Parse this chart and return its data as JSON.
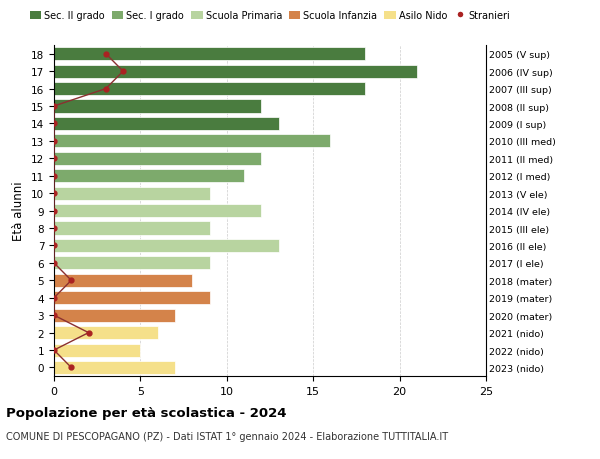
{
  "ages": [
    18,
    17,
    16,
    15,
    14,
    13,
    12,
    11,
    10,
    9,
    8,
    7,
    6,
    5,
    4,
    3,
    2,
    1,
    0
  ],
  "bar_values": [
    18,
    21,
    18,
    12,
    13,
    16,
    12,
    11,
    9,
    12,
    9,
    13,
    9,
    8,
    9,
    7,
    6,
    5,
    7
  ],
  "bar_colors": [
    "#4a7c3f",
    "#4a7c3f",
    "#4a7c3f",
    "#4a7c3f",
    "#4a7c3f",
    "#7daa6c",
    "#7daa6c",
    "#7daa6c",
    "#b8d4a0",
    "#b8d4a0",
    "#b8d4a0",
    "#b8d4a0",
    "#b8d4a0",
    "#d4834a",
    "#d4834a",
    "#d4834a",
    "#f5e08a",
    "#f5e08a",
    "#f5e08a"
  ],
  "stranieri_values": [
    3,
    4,
    3,
    0,
    0,
    0,
    0,
    0,
    0,
    0,
    0,
    0,
    0,
    1,
    0,
    0,
    2,
    0,
    1
  ],
  "right_labels": [
    "2005 (V sup)",
    "2006 (IV sup)",
    "2007 (III sup)",
    "2008 (II sup)",
    "2009 (I sup)",
    "2010 (III med)",
    "2011 (II med)",
    "2012 (I med)",
    "2013 (V ele)",
    "2014 (IV ele)",
    "2015 (III ele)",
    "2016 (II ele)",
    "2017 (I ele)",
    "2018 (mater)",
    "2019 (mater)",
    "2020 (mater)",
    "2021 (nido)",
    "2022 (nido)",
    "2023 (nido)"
  ],
  "legend_labels": [
    "Sec. II grado",
    "Sec. I grado",
    "Scuola Primaria",
    "Scuola Infanzia",
    "Asilo Nido",
    "Stranieri"
  ],
  "legend_colors": [
    "#4a7c3f",
    "#7daa6c",
    "#b8d4a0",
    "#d4834a",
    "#f5e08a",
    "#aa2222"
  ],
  "ylabel": "Età alunni",
  "title": "Popolazione per età scolastica - 2024",
  "subtitle": "COMUNE DI PESCOPAGANO (PZ) - Dati ISTAT 1° gennaio 2024 - Elaborazione TUTTITALIA.IT",
  "xlim": [
    0,
    25
  ],
  "background_color": "#ffffff",
  "stranieri_color": "#aa2222",
  "stranieri_line_color": "#8b3030"
}
